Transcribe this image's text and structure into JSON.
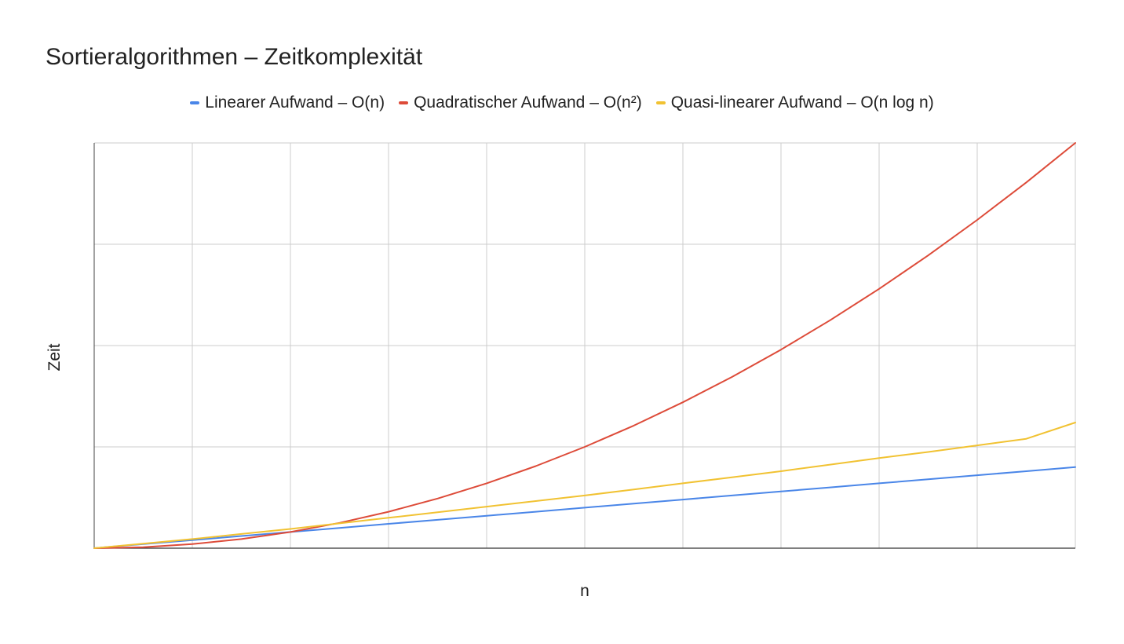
{
  "chart_data": {
    "type": "line",
    "title": "Sortieralgorithmen – Zeitkomplexität",
    "xlabel": "n",
    "ylabel": "Zeit",
    "x": [
      0,
      1,
      2,
      3,
      4,
      5,
      6,
      7,
      8,
      9,
      10,
      11,
      12,
      13,
      14,
      15,
      16,
      17,
      18,
      19,
      20
    ],
    "ylim": [
      0,
      400
    ],
    "xlim": [
      0,
      20
    ],
    "grid": true,
    "tick_labels_visible": false,
    "legend_position": "top",
    "series": [
      {
        "name": "Linearer Aufwand – O(n)",
        "color": "#4a86e8",
        "values": [
          0,
          4,
          8,
          12,
          16,
          20,
          24,
          28,
          32,
          36,
          40,
          44,
          48,
          52,
          56,
          60,
          64,
          68,
          72,
          76,
          80
        ]
      },
      {
        "name": "Quadratischer Aufwand – O(n²)",
        "color": "#dd4b39",
        "values": [
          0,
          1,
          4,
          9,
          16,
          25,
          36,
          49,
          64,
          81,
          100,
          121,
          144,
          169,
          196,
          225,
          256,
          289,
          324,
          361,
          400
        ]
      },
      {
        "name": "Quasi-linearer Aufwand – O(n log n)",
        "color": "#f1c232",
        "values": [
          0,
          4.5,
          9,
          14,
          19,
          24.5,
          30,
          35.5,
          41,
          46.5,
          52,
          58,
          64,
          70,
          76,
          82.5,
          89,
          95,
          101.5,
          108,
          124
        ]
      }
    ]
  }
}
